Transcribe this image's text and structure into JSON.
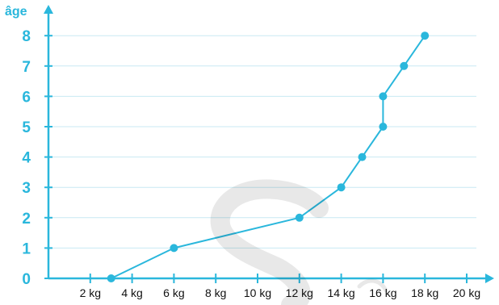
{
  "chart_data": {
    "type": "line",
    "ylabel": "âge",
    "xlabel": "",
    "x_unit": "kg",
    "x_ticks": [
      2,
      4,
      6,
      8,
      10,
      12,
      14,
      16,
      18,
      20
    ],
    "x_tick_labels": [
      "2 kg",
      "4 kg",
      "6 kg",
      "8 kg",
      "10 kg",
      "12 kg",
      "14 kg",
      "16 kg",
      "18 kg",
      "20 kg"
    ],
    "y_ticks": [
      0,
      1,
      2,
      3,
      4,
      5,
      6,
      7,
      8
    ],
    "y_tick_labels": [
      "0",
      "1",
      "2",
      "3",
      "4",
      "5",
      "6",
      "7",
      "8"
    ],
    "xlim": [
      0,
      21
    ],
    "ylim": [
      0,
      8.6
    ],
    "grid": "horizontal",
    "series": [
      {
        "points": [
          {
            "x": 3,
            "y": 0
          },
          {
            "x": 6,
            "y": 1
          },
          {
            "x": 12,
            "y": 2
          },
          {
            "x": 14,
            "y": 3
          },
          {
            "x": 15,
            "y": 4
          },
          {
            "x": 16,
            "y": 5
          },
          {
            "x": 16,
            "y": 6
          },
          {
            "x": 17,
            "y": 7
          },
          {
            "x": 18,
            "y": 8
          }
        ]
      }
    ]
  },
  "colors": {
    "accent": "#2ab7dc",
    "grid": "#c8e9f3",
    "tick_text": "#111111"
  }
}
